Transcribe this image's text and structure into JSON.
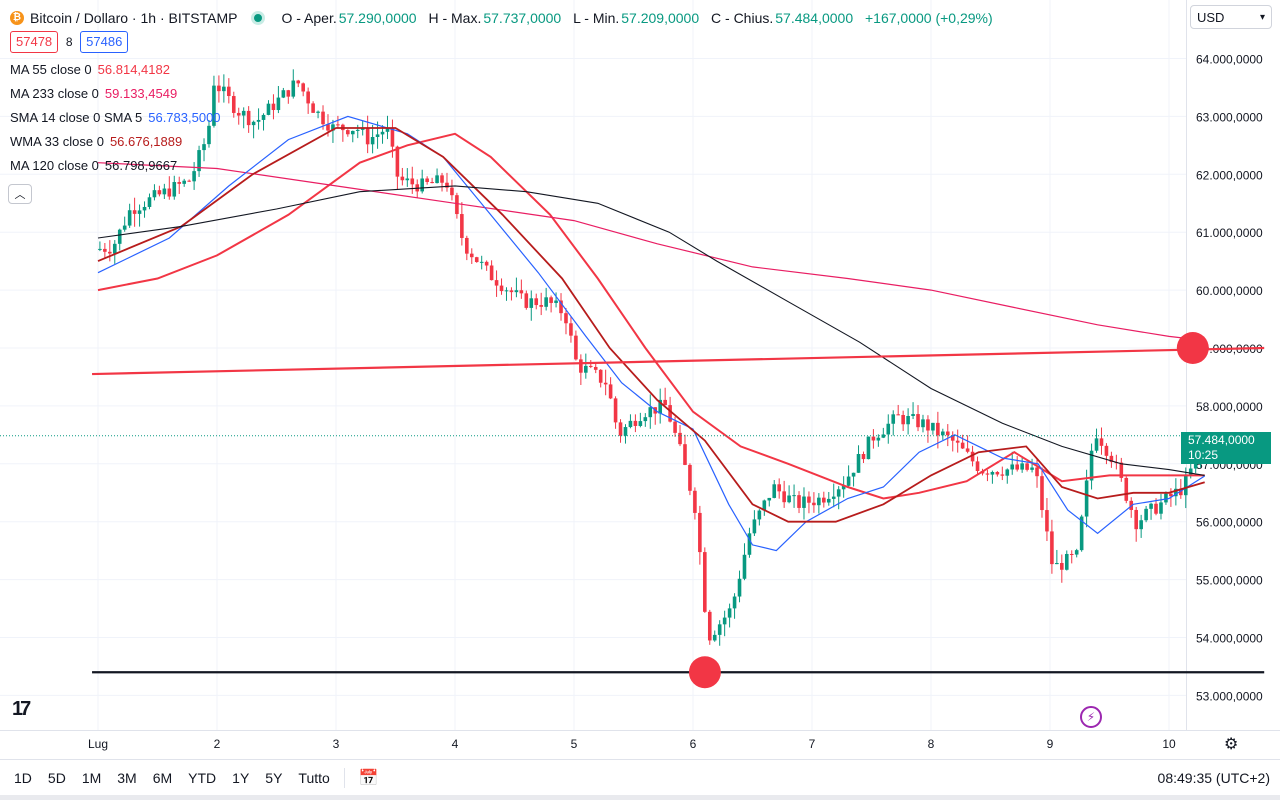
{
  "header": {
    "symbol_title": "Bitcoin / Dollaro · 1h · BITSTAMP",
    "ohlc": {
      "open_label": "O - Aper.",
      "open": "57.290,0000",
      "high_label": "H - Max.",
      "high": "57.737,0000",
      "low_label": "L - Min.",
      "low": "57.209,0000",
      "close_label": "C - Chius.",
      "close": "57.484,0000",
      "change": "+167,0000 (+0,29%)"
    },
    "sell_price": "57478",
    "spread": "8",
    "buy_price": "57486",
    "currency": "USD",
    "icons": {
      "coin": "bitcoin-icon",
      "status": "market-open-dot-icon",
      "collapse": "chevron-up-icon",
      "dropdown": "chevron-down-icon"
    }
  },
  "indicators": [
    {
      "label": "MA 55 close 0",
      "value": "56.814,4182",
      "color": "#f23645"
    },
    {
      "label": "MA 233 close 0",
      "value": "59.133,4549",
      "color": "#e91e63"
    },
    {
      "label": "SMA 14 close 0 SMA 5",
      "value": "56.783,5000",
      "color": "#2962ff"
    },
    {
      "label": "WMA 33 close 0",
      "value": "56.676,1889",
      "color": "#b71c1c"
    },
    {
      "label": "MA 120 close 0",
      "value": "56.798,9667",
      "color": "#131722"
    }
  ],
  "colors": {
    "up": "#089981",
    "down": "#f23645",
    "grid": "#f0f3fa",
    "marker": "#f23645"
  },
  "chart_data": {
    "type": "candlestick",
    "x_axis_labels": [
      "Lug",
      "2",
      "3",
      "4",
      "5",
      "6",
      "7",
      "8",
      "9",
      "10"
    ],
    "y_axis_labels": [
      "64.000,0000",
      "63.000,0000",
      "62.000,0000",
      "61.000,0000",
      "60.000,0000",
      "59.000,0000",
      "58.000,0000",
      "57.000,0000",
      "56.000,0000",
      "55.000,0000",
      "54.000,0000",
      "53.000,0000"
    ],
    "ylim": [
      52800,
      64200
    ],
    "xlim": [
      0,
      9.8
    ],
    "current_price": "57.484,0000",
    "countdown": "10:25",
    "price_path": [
      [
        0,
        60700
      ],
      [
        0.15,
        60750
      ],
      [
        0.3,
        61400
      ],
      [
        0.55,
        61650
      ],
      [
        0.8,
        61900
      ],
      [
        0.95,
        62700
      ],
      [
        1.0,
        63600
      ],
      [
        1.2,
        63100
      ],
      [
        1.35,
        62900
      ],
      [
        1.55,
        63300
      ],
      [
        1.7,
        63600
      ],
      [
        1.85,
        63100
      ],
      [
        2.0,
        62800
      ],
      [
        2.2,
        62800
      ],
      [
        2.3,
        62600
      ],
      [
        2.45,
        62800
      ],
      [
        2.55,
        61900
      ],
      [
        2.75,
        61800
      ],
      [
        2.95,
        61900
      ],
      [
        3.1,
        60800
      ],
      [
        3.3,
        60300
      ],
      [
        3.6,
        59800
      ],
      [
        3.8,
        59800
      ],
      [
        3.95,
        59600
      ],
      [
        4.05,
        58700
      ],
      [
        4.15,
        58600
      ],
      [
        4.3,
        58400
      ],
      [
        4.4,
        57500
      ],
      [
        4.6,
        57900
      ],
      [
        4.8,
        58000
      ],
      [
        4.95,
        57000
      ],
      [
        5.05,
        56200
      ],
      [
        5.15,
        54000
      ],
      [
        5.35,
        54500
      ],
      [
        5.5,
        55800
      ],
      [
        5.7,
        56600
      ],
      [
        5.9,
        56300
      ],
      [
        6.1,
        56400
      ],
      [
        6.3,
        56700
      ],
      [
        6.55,
        57500
      ],
      [
        6.75,
        57800
      ],
      [
        6.95,
        57700
      ],
      [
        7.2,
        57400
      ],
      [
        7.45,
        56900
      ],
      [
        7.65,
        56900
      ],
      [
        7.9,
        56900
      ],
      [
        8.05,
        55200
      ],
      [
        8.25,
        55400
      ],
      [
        8.4,
        57600
      ],
      [
        8.55,
        57100
      ],
      [
        8.75,
        56000
      ],
      [
        8.95,
        56300
      ],
      [
        9.15,
        56600
      ],
      [
        9.3,
        57300
      ],
      [
        9.35,
        57484
      ]
    ],
    "moving_averages": [
      {
        "name": "MA 55",
        "color": "#f23645",
        "points": [
          [
            0,
            60000
          ],
          [
            0.5,
            60200
          ],
          [
            1,
            60600
          ],
          [
            1.6,
            61300
          ],
          [
            2.2,
            62200
          ],
          [
            2.6,
            62500
          ],
          [
            3.0,
            62700
          ],
          [
            3.3,
            62300
          ],
          [
            3.8,
            61300
          ],
          [
            4.2,
            60200
          ],
          [
            4.6,
            59000
          ],
          [
            5.0,
            57900
          ],
          [
            5.4,
            57300
          ],
          [
            5.8,
            57000
          ],
          [
            6.3,
            56600
          ],
          [
            6.6,
            56400
          ],
          [
            6.9,
            56500
          ],
          [
            7.3,
            56700
          ],
          [
            7.7,
            57200
          ],
          [
            8.1,
            56700
          ],
          [
            8.5,
            56800
          ],
          [
            8.9,
            56800
          ],
          [
            9.3,
            56800
          ]
        ]
      },
      {
        "name": "MA 233",
        "color": "#e91e63",
        "points": [
          [
            0,
            62200
          ],
          [
            1,
            62100
          ],
          [
            2,
            61800
          ],
          [
            3,
            61500
          ],
          [
            4,
            61200
          ],
          [
            4.7,
            60800
          ],
          [
            5.5,
            60400
          ],
          [
            6.3,
            60200
          ],
          [
            7.0,
            60000
          ],
          [
            7.7,
            59700
          ],
          [
            8.4,
            59400
          ],
          [
            9.0,
            59200
          ],
          [
            9.3,
            59130
          ]
        ]
      },
      {
        "name": "SMA 14",
        "color": "#2962ff",
        "points": [
          [
            0,
            60300
          ],
          [
            0.6,
            60900
          ],
          [
            1.1,
            61800
          ],
          [
            1.6,
            62600
          ],
          [
            2.1,
            63000
          ],
          [
            2.6,
            62700
          ],
          [
            2.9,
            62300
          ],
          [
            3.3,
            61300
          ],
          [
            3.7,
            60300
          ],
          [
            4.1,
            59200
          ],
          [
            4.4,
            58400
          ],
          [
            4.7,
            57900
          ],
          [
            5.0,
            57600
          ],
          [
            5.3,
            56300
          ],
          [
            5.5,
            55600
          ],
          [
            5.7,
            55500
          ],
          [
            5.95,
            56000
          ],
          [
            6.3,
            56400
          ],
          [
            6.6,
            56600
          ],
          [
            6.9,
            57200
          ],
          [
            7.2,
            57500
          ],
          [
            7.6,
            57100
          ],
          [
            7.9,
            57000
          ],
          [
            8.15,
            56200
          ],
          [
            8.4,
            55800
          ],
          [
            8.7,
            56300
          ],
          [
            9.0,
            56400
          ],
          [
            9.3,
            56790
          ]
        ]
      },
      {
        "name": "WMA 33",
        "color": "#b71c1c",
        "points": [
          [
            0,
            60500
          ],
          [
            0.7,
            61100
          ],
          [
            1.3,
            62000
          ],
          [
            2.0,
            62800
          ],
          [
            2.5,
            62800
          ],
          [
            2.9,
            62300
          ],
          [
            3.4,
            61300
          ],
          [
            3.9,
            60200
          ],
          [
            4.3,
            59000
          ],
          [
            4.7,
            58100
          ],
          [
            5.1,
            57400
          ],
          [
            5.5,
            56300
          ],
          [
            5.8,
            56000
          ],
          [
            6.2,
            56000
          ],
          [
            6.6,
            56300
          ],
          [
            7.0,
            56800
          ],
          [
            7.4,
            57200
          ],
          [
            7.8,
            57300
          ],
          [
            8.1,
            56600
          ],
          [
            8.4,
            56400
          ],
          [
            8.7,
            56500
          ],
          [
            9.0,
            56500
          ],
          [
            9.3,
            56680
          ]
        ]
      },
      {
        "name": "MA 120",
        "color": "#131722",
        "points": [
          [
            0,
            60900
          ],
          [
            0.7,
            61100
          ],
          [
            1.5,
            61400
          ],
          [
            2.2,
            61700
          ],
          [
            3.0,
            61800
          ],
          [
            3.6,
            61700
          ],
          [
            4.2,
            61500
          ],
          [
            4.8,
            61000
          ],
          [
            5.2,
            60500
          ],
          [
            5.8,
            59800
          ],
          [
            6.4,
            59100
          ],
          [
            7.0,
            58300
          ],
          [
            7.6,
            57700
          ],
          [
            8.1,
            57300
          ],
          [
            8.6,
            57000
          ],
          [
            9.0,
            56900
          ],
          [
            9.3,
            56800
          ]
        ]
      }
    ],
    "trendlines": [
      {
        "name": "resistance",
        "color": "#f23645",
        "from": [
          -0.05,
          58550
        ],
        "to": [
          9.8,
          59000
        ]
      },
      {
        "name": "support",
        "color": "#131722",
        "from": [
          -0.05,
          53400
        ],
        "to": [
          9.8,
          53400
        ]
      }
    ],
    "markers": [
      {
        "name": "resistance-marker",
        "x": 9.2,
        "y": 59000
      },
      {
        "name": "support-marker",
        "x": 5.1,
        "y": 53400
      }
    ]
  },
  "footer": {
    "timeframes": [
      "1D",
      "5D",
      "1M",
      "3M",
      "6M",
      "YTD",
      "1Y",
      "5Y",
      "Tutto"
    ],
    "clock": "08:49:35 (UTC+2)",
    "logo": "17"
  }
}
